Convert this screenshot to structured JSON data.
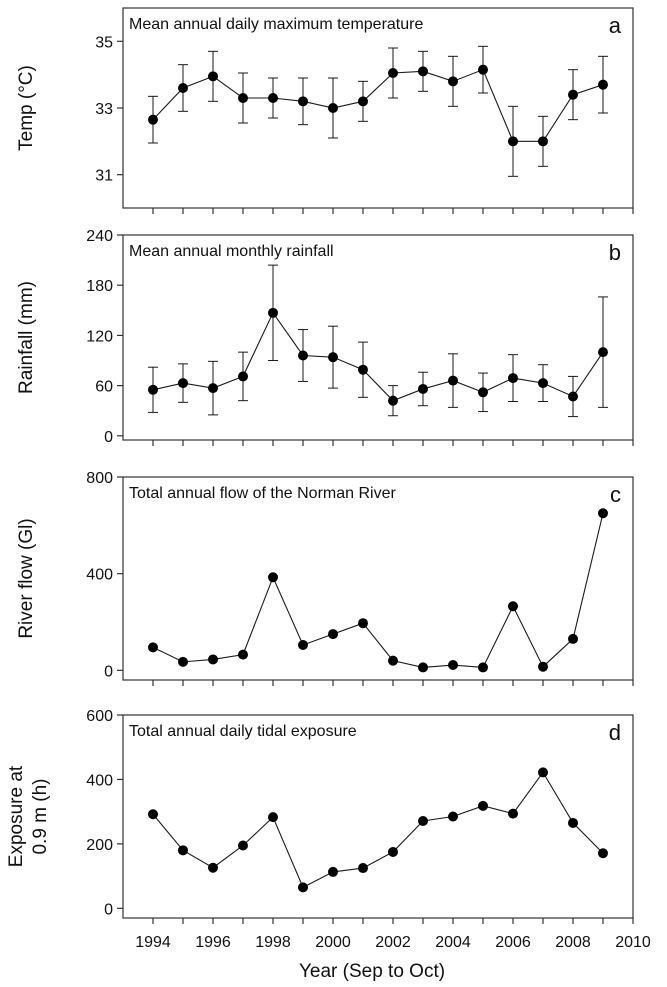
{
  "chart_data": [
    {
      "type": "line",
      "panel_letter": "a",
      "title": "Mean annual daily maximum temperature",
      "ylabel": [
        "Temp (°C)"
      ],
      "ylim": [
        30,
        36
      ],
      "yticks": [
        31,
        33,
        35
      ],
      "x": [
        1994,
        1995,
        1996,
        1997,
        1998,
        1999,
        2000,
        2001,
        2002,
        2003,
        2004,
        2005,
        2006,
        2007,
        2008,
        2009
      ],
      "values": [
        32.65,
        33.6,
        33.95,
        33.3,
        33.3,
        33.2,
        33.0,
        33.2,
        34.05,
        34.1,
        33.8,
        34.15,
        32.0,
        32.0,
        33.4,
        33.7
      ],
      "error": [
        0.7,
        0.7,
        0.75,
        0.75,
        0.6,
        0.7,
        0.9,
        0.6,
        0.75,
        0.6,
        0.75,
        0.7,
        1.05,
        0.75,
        0.75,
        0.85
      ]
    },
    {
      "type": "line",
      "panel_letter": "b",
      "title": "Mean annual monthly rainfall",
      "ylabel": [
        "Rainfall (mm)"
      ],
      "ylim": [
        -5,
        240
      ],
      "yticks": [
        0,
        60,
        120,
        180,
        240
      ],
      "x": [
        1994,
        1995,
        1996,
        1997,
        1998,
        1999,
        2000,
        2001,
        2002,
        2003,
        2004,
        2005,
        2006,
        2007,
        2008,
        2009
      ],
      "values": [
        55,
        63,
        57,
        71,
        147,
        96,
        94,
        79,
        42,
        56,
        66,
        52,
        69,
        63,
        47,
        100
      ],
      "error": [
        27,
        23,
        32,
        29,
        57,
        31,
        37,
        33,
        18,
        20,
        32,
        23,
        28,
        22,
        24,
        66
      ]
    },
    {
      "type": "line",
      "panel_letter": "c",
      "title": "Total annual flow of the Norman River",
      "ylabel": [
        "River flow (Gl)"
      ],
      "ylim": [
        -40,
        800
      ],
      "yticks": [
        0,
        400,
        800
      ],
      "x": [
        1994,
        1995,
        1996,
        1997,
        1998,
        1999,
        2000,
        2001,
        2002,
        2003,
        2004,
        2005,
        2006,
        2007,
        2008,
        2009
      ],
      "values": [
        95,
        35,
        45,
        65,
        385,
        105,
        150,
        195,
        40,
        12,
        22,
        12,
        265,
        15,
        130,
        650
      ]
    },
    {
      "type": "line",
      "panel_letter": "d",
      "title": "Total annual daily tidal exposure",
      "ylabel": [
        "Exposure at",
        "0.9 m (h)"
      ],
      "ylim": [
        -30,
        600
      ],
      "yticks": [
        0,
        200,
        400,
        600
      ],
      "x": [
        1994,
        1995,
        1996,
        1997,
        1998,
        1999,
        2000,
        2001,
        2002,
        2003,
        2004,
        2005,
        2006,
        2007,
        2008,
        2009
      ],
      "values": [
        292,
        180,
        126,
        195,
        283,
        65,
        113,
        125,
        175,
        271,
        285,
        318,
        294,
        422,
        265,
        171
      ]
    }
  ],
  "x_axis": {
    "xlim": [
      1993,
      2010
    ],
    "ticks": [
      1994,
      1995,
      1996,
      1997,
      1998,
      1999,
      2000,
      2001,
      2002,
      2003,
      2004,
      2005,
      2006,
      2007,
      2008,
      2009,
      2010
    ],
    "tick_labels": [
      "1994",
      "1996",
      "1998",
      "2000",
      "2002",
      "2004",
      "2006",
      "2008",
      "2010"
    ],
    "xlabel": "Year (Sep to Oct)"
  },
  "colors": {
    "line": "#1a1a1a",
    "marker": "#000000",
    "axis": "#333333"
  }
}
